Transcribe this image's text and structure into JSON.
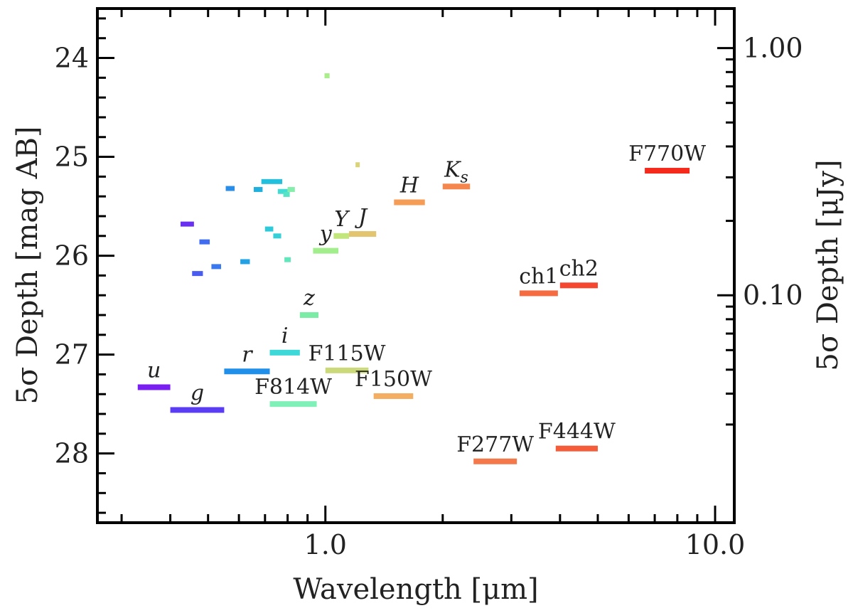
{
  "chart_data": {
    "type": "scatter",
    "title": "",
    "xlabel": "Wavelength [μm]",
    "ylabel_left": "5σ Depth [mag AB]",
    "ylabel_right": "5σ Depth [μJy]",
    "x_scale": "log",
    "xlim": [
      0.26,
      11.2
    ],
    "ylim": [
      28.7,
      23.5
    ],
    "x_ticks": [
      {
        "value": 1.0,
        "label": "1.0"
      },
      {
        "value": 10.0,
        "label": "10.0"
      }
    ],
    "y_ticks": [
      {
        "value": 24,
        "label": "24"
      },
      {
        "value": 25,
        "label": "25"
      },
      {
        "value": 26,
        "label": "26"
      },
      {
        "value": 27,
        "label": "27"
      },
      {
        "value": 28,
        "label": "28"
      }
    ],
    "y_right_ticks": [
      {
        "value": 1.0,
        "label": "1.00"
      },
      {
        "value": 0.1,
        "label": "0.10"
      }
    ],
    "grid": false,
    "legend": "none",
    "bands": [
      {
        "name": "u",
        "label": "u",
        "italic": true,
        "xmin": 0.33,
        "xmax": 0.4,
        "depth": 27.33,
        "color": "#7a1ff2"
      },
      {
        "name": "g",
        "label": "g",
        "italic": true,
        "xmin": 0.4,
        "xmax": 0.55,
        "depth": 27.56,
        "color": "#5b3cf5"
      },
      {
        "name": "r",
        "label": "r",
        "italic": true,
        "xmin": 0.55,
        "xmax": 0.72,
        "depth": 27.17,
        "color": "#1f8fe9"
      },
      {
        "name": "i",
        "label": "i",
        "italic": true,
        "xmin": 0.72,
        "xmax": 0.86,
        "depth": 26.98,
        "color": "#3fd8d8"
      },
      {
        "name": "z",
        "label": "z",
        "italic": true,
        "xmin": 0.86,
        "xmax": 0.96,
        "depth": 26.6,
        "color": "#7aeca6"
      },
      {
        "name": "y",
        "label": "y",
        "italic": true,
        "xmin": 0.93,
        "xmax": 1.08,
        "depth": 25.95,
        "color": "#a3ee8c"
      },
      {
        "name": "Y",
        "label": "Y",
        "italic": true,
        "xmin": 1.05,
        "xmax": 1.15,
        "depth": 25.8,
        "color": "#c3e67c"
      },
      {
        "name": "J",
        "label": "J",
        "italic": true,
        "xmin": 1.15,
        "xmax": 1.35,
        "depth": 25.78,
        "color": "#e3c46f"
      },
      {
        "name": "H",
        "label": "H",
        "italic": true,
        "xmin": 1.5,
        "xmax": 1.8,
        "depth": 25.46,
        "color": "#f59c57"
      },
      {
        "name": "Ks",
        "label": "Ks",
        "italic": true,
        "xmin": 2.0,
        "xmax": 2.35,
        "depth": 25.3,
        "color": "#f5874e"
      },
      {
        "name": "F814W",
        "label": "F814W",
        "italic": false,
        "xmin": 0.72,
        "xmax": 0.95,
        "depth": 27.5,
        "color": "#7ef0b8"
      },
      {
        "name": "F115W",
        "label": "F115W",
        "italic": false,
        "xmin": 1.0,
        "xmax": 1.29,
        "depth": 27.16,
        "color": "#cbd97b"
      },
      {
        "name": "F150W",
        "label": "F150W",
        "italic": false,
        "xmin": 1.33,
        "xmax": 1.68,
        "depth": 27.42,
        "color": "#f3ae61"
      },
      {
        "name": "F277W",
        "label": "F277W",
        "italic": false,
        "xmin": 2.4,
        "xmax": 3.1,
        "depth": 28.08,
        "color": "#f5784a"
      },
      {
        "name": "F444W",
        "label": "F444W",
        "italic": false,
        "xmin": 3.9,
        "xmax": 5.0,
        "depth": 27.95,
        "color": "#f55c3a"
      },
      {
        "name": "ch1",
        "label": "ch1",
        "italic": false,
        "xmin": 3.15,
        "xmax": 3.95,
        "depth": 26.38,
        "color": "#f56c42"
      },
      {
        "name": "ch2",
        "label": "ch2",
        "italic": false,
        "xmin": 4.0,
        "xmax": 5.0,
        "depth": 26.3,
        "color": "#f54630"
      },
      {
        "name": "F770W",
        "label": "F770W",
        "italic": false,
        "xmin": 6.6,
        "xmax": 8.6,
        "depth": 25.14,
        "color": "#f52a1d"
      }
    ],
    "unlabeled_bands": [
      {
        "xmin": 0.425,
        "xmax": 0.46,
        "depth": 25.68,
        "color": "#6a30f2"
      },
      {
        "xmin": 0.455,
        "xmax": 0.485,
        "depth": 26.18,
        "color": "#4a5cf0"
      },
      {
        "xmin": 0.475,
        "xmax": 0.505,
        "depth": 25.86,
        "color": "#3f6cf0"
      },
      {
        "xmin": 0.51,
        "xmax": 0.54,
        "depth": 26.11,
        "color": "#3978ef"
      },
      {
        "xmin": 0.555,
        "xmax": 0.585,
        "depth": 25.32,
        "color": "#2a8ee9"
      },
      {
        "xmin": 0.605,
        "xmax": 0.64,
        "depth": 26.06,
        "color": "#22a2e4"
      },
      {
        "xmin": 0.655,
        "xmax": 0.69,
        "depth": 25.33,
        "color": "#1fb0e0"
      },
      {
        "xmin": 0.685,
        "xmax": 0.775,
        "depth": 25.25,
        "color": "#23c0dd"
      },
      {
        "xmin": 0.7,
        "xmax": 0.735,
        "depth": 25.73,
        "color": "#2ccadb"
      },
      {
        "xmin": 0.735,
        "xmax": 0.77,
        "depth": 25.8,
        "color": "#33d0d8"
      },
      {
        "xmin": 0.755,
        "xmax": 0.8,
        "depth": 25.35,
        "color": "#42dcd2"
      },
      {
        "xmin": 0.78,
        "xmax": 0.81,
        "depth": 25.38,
        "color": "#55e4c6"
      },
      {
        "xmin": 0.785,
        "xmax": 0.815,
        "depth": 26.04,
        "color": "#62e6bb"
      },
      {
        "xmin": 0.8,
        "xmax": 0.835,
        "depth": 25.33,
        "color": "#86eeab"
      },
      {
        "xmin": 0.995,
        "xmax": 1.025,
        "depth": 24.18,
        "color": "#a9ee8a"
      },
      {
        "xmin": 1.195,
        "xmax": 1.225,
        "depth": 25.08,
        "color": "#d9d37a"
      }
    ]
  }
}
